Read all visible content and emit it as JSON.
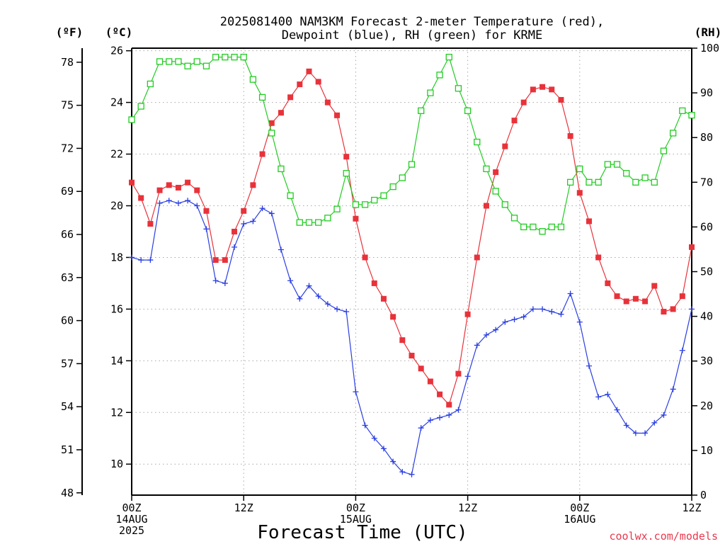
{
  "chart_data": {
    "type": "line",
    "title_line1": "2025081400 NAM3KM Forecast 2-meter Temperature (red),",
    "title_line2": "Dewpoint (blue), RH (green) for KRME",
    "xlabel": "Forecast Time (UTC)",
    "credit": "coolwx.com/models",
    "unit_labels": {
      "fahrenheit": "(ºF)",
      "celsius": "(ºC)",
      "rh": "(RH)"
    },
    "x_ticks": [
      {
        "hour": 0,
        "lines": [
          "00Z",
          "14AUG",
          "2025"
        ]
      },
      {
        "hour": 12,
        "lines": [
          "12Z"
        ]
      },
      {
        "hour": 24,
        "lines": [
          "00Z",
          "15AUG"
        ]
      },
      {
        "hour": 36,
        "lines": [
          "12Z"
        ]
      },
      {
        "hour": 48,
        "lines": [
          "00Z",
          "16AUG"
        ]
      },
      {
        "hour": 60,
        "lines": [
          "12Z"
        ]
      }
    ],
    "x_range": [
      0,
      60
    ],
    "y_celsius_range": [
      8.8,
      26.1
    ],
    "y_celsius_ticks": [
      10,
      12,
      14,
      16,
      18,
      20,
      22,
      24,
      26
    ],
    "y_fahrenheit_ticks": [
      48,
      51,
      54,
      57,
      60,
      63,
      66,
      69,
      72,
      75,
      78
    ],
    "y_rh_range": [
      0,
      100
    ],
    "y_rh_ticks": [
      0,
      10,
      20,
      30,
      40,
      50,
      60,
      70,
      80,
      90,
      100
    ],
    "grid": true,
    "colors": {
      "temperature": "#e8323a",
      "dewpoint": "#2a3ee0",
      "rh": "#22cc22"
    },
    "hours": [
      0,
      1,
      2,
      3,
      4,
      5,
      6,
      7,
      8,
      9,
      10,
      11,
      12,
      13,
      14,
      15,
      16,
      17,
      18,
      19,
      20,
      21,
      22,
      23,
      24,
      25,
      26,
      27,
      28,
      29,
      30,
      31,
      32,
      33,
      34,
      35,
      36,
      37,
      38,
      39,
      40,
      41,
      42,
      43,
      44,
      45,
      46,
      47,
      48,
      49,
      50,
      51,
      52,
      53,
      54,
      55,
      56,
      57,
      58,
      59,
      60
    ],
    "series": [
      {
        "key": "temperature",
        "axis": "celsius",
        "marker": "filled-square",
        "values": [
          20.9,
          20.3,
          19.3,
          20.6,
          20.8,
          20.7,
          20.9,
          20.6,
          19.8,
          17.9,
          17.9,
          19.0,
          19.8,
          20.8,
          22.0,
          23.2,
          23.6,
          24.2,
          24.7,
          25.2,
          24.8,
          24.0,
          23.5,
          21.9,
          19.5,
          18.0,
          17.0,
          16.4,
          15.7,
          14.8,
          14.2,
          13.7,
          13.2,
          12.7,
          12.3,
          13.5,
          15.8,
          18.0,
          20.0,
          21.3,
          22.3,
          23.3,
          24.0,
          24.5,
          24.6,
          24.5,
          24.1,
          22.7,
          20.5,
          19.4,
          18.0,
          17.0,
          16.5,
          16.3,
          16.4,
          16.3,
          16.9,
          15.9,
          16.0,
          16.5,
          18.4
        ]
      },
      {
        "key": "dewpoint",
        "axis": "celsius",
        "marker": "plus",
        "values": [
          18.0,
          17.9,
          17.9,
          20.1,
          20.2,
          20.1,
          20.2,
          20.0,
          19.1,
          17.1,
          17.0,
          18.4,
          19.3,
          19.4,
          19.9,
          19.7,
          18.3,
          17.1,
          16.4,
          16.9,
          16.5,
          16.2,
          16.0,
          15.9,
          12.8,
          11.5,
          11.0,
          10.6,
          10.1,
          9.7,
          9.6,
          11.4,
          11.7,
          11.8,
          11.9,
          12.1,
          13.4,
          14.6,
          15.0,
          15.2,
          15.5,
          15.6,
          15.7,
          16.0,
          16.0,
          15.9,
          15.8,
          16.6,
          15.5,
          13.8,
          12.6,
          12.7,
          12.1,
          11.5,
          11.2,
          11.2,
          11.6,
          11.9,
          12.9,
          14.4,
          16.0
        ]
      },
      {
        "key": "rh",
        "axis": "rh",
        "marker": "open-square",
        "values": [
          84,
          87,
          92,
          97,
          97,
          97,
          96,
          97,
          96,
          98,
          98,
          98,
          98,
          93,
          89,
          81,
          73,
          67,
          61,
          61,
          61,
          62,
          64,
          72,
          65,
          65,
          66,
          67,
          69,
          71,
          74,
          86,
          90,
          94,
          98,
          91,
          86,
          79,
          73,
          68,
          65,
          62,
          60,
          60,
          59,
          60,
          60,
          70,
          73,
          70,
          70,
          74,
          74,
          72,
          70,
          71,
          70,
          77,
          81,
          86,
          85
        ]
      }
    ]
  }
}
